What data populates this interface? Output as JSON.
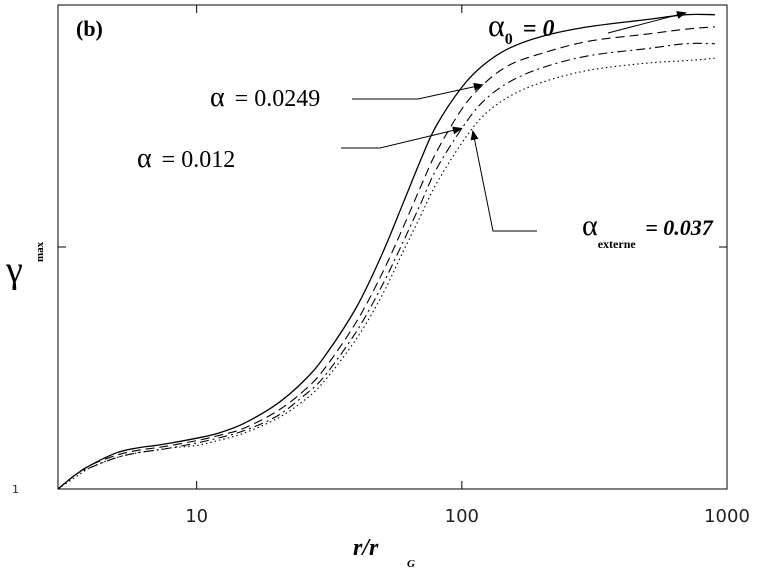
{
  "chart_data": {
    "type": "line",
    "panel_label": "(b)",
    "xlabel": {
      "main": "r/r",
      "sub": "G"
    },
    "ylabel": {
      "main": "γ",
      "sub": "max"
    },
    "x_scale": "log",
    "xlim": [
      3,
      1000
    ],
    "ylim": [
      1,
      3
    ],
    "x_ticks": [
      {
        "value": 10,
        "label": "10"
      },
      {
        "value": 100,
        "label": "100"
      },
      {
        "value": 1000,
        "label": "1000"
      }
    ],
    "y_ticks": [
      {
        "value": 1,
        "label": "1"
      },
      {
        "value": 2,
        "label": ""
      },
      {
        "value": 3,
        "label": ""
      }
    ],
    "grid": false,
    "x": [
      3,
      3.5,
      4,
      5,
      6,
      7,
      8,
      10,
      12,
      15,
      20,
      25,
      30,
      40,
      50,
      60,
      70,
      80,
      100,
      120,
      150,
      200,
      300,
      500,
      700,
      900
    ],
    "series": [
      {
        "style": "solid",
        "values": [
          1.0,
          1.06,
          1.1,
          1.15,
          1.17,
          1.18,
          1.19,
          1.21,
          1.23,
          1.27,
          1.35,
          1.44,
          1.54,
          1.75,
          1.97,
          2.18,
          2.36,
          2.5,
          2.66,
          2.75,
          2.82,
          2.87,
          2.91,
          2.94,
          2.96,
          2.96
        ]
      },
      {
        "style": "dashed",
        "values": [
          1.0,
          1.06,
          1.1,
          1.14,
          1.16,
          1.17,
          1.18,
          1.2,
          1.22,
          1.25,
          1.32,
          1.4,
          1.49,
          1.69,
          1.89,
          2.08,
          2.25,
          2.39,
          2.57,
          2.67,
          2.75,
          2.8,
          2.85,
          2.88,
          2.9,
          2.91
        ]
      },
      {
        "style": "dashdot",
        "values": [
          1.0,
          1.06,
          1.09,
          1.13,
          1.15,
          1.16,
          1.17,
          1.19,
          1.21,
          1.24,
          1.3,
          1.38,
          1.46,
          1.65,
          1.84,
          2.02,
          2.18,
          2.32,
          2.49,
          2.6,
          2.68,
          2.74,
          2.79,
          2.82,
          2.84,
          2.84
        ]
      },
      {
        "style": "dotted",
        "values": [
          1.0,
          1.05,
          1.09,
          1.13,
          1.15,
          1.16,
          1.17,
          1.18,
          1.2,
          1.23,
          1.29,
          1.36,
          1.44,
          1.62,
          1.8,
          1.98,
          2.13,
          2.26,
          2.43,
          2.54,
          2.62,
          2.68,
          2.73,
          2.76,
          2.77,
          2.78
        ]
      }
    ],
    "annotations": [
      {
        "text": "α",
        "sub": "0",
        "value": "= 0",
        "style": "bold-italic",
        "series_index": 0,
        "arrow_to": [
          700,
          2.96
        ]
      },
      {
        "text": "α",
        "sub": "",
        "value": "= 0.0249",
        "style": "regular",
        "series_index": 1,
        "arrow_to": [
          120,
          2.67
        ]
      },
      {
        "text": "α",
        "sub": "",
        "value": "= 0.012",
        "style": "regular",
        "series_index": 2,
        "arrow_to": [
          100,
          2.49
        ]
      },
      {
        "text": "α",
        "sub": "externe",
        "value": "= 0.037",
        "style": "bold-italic",
        "series_index": 3,
        "arrow_to": [
          110,
          2.48
        ]
      }
    ]
  }
}
